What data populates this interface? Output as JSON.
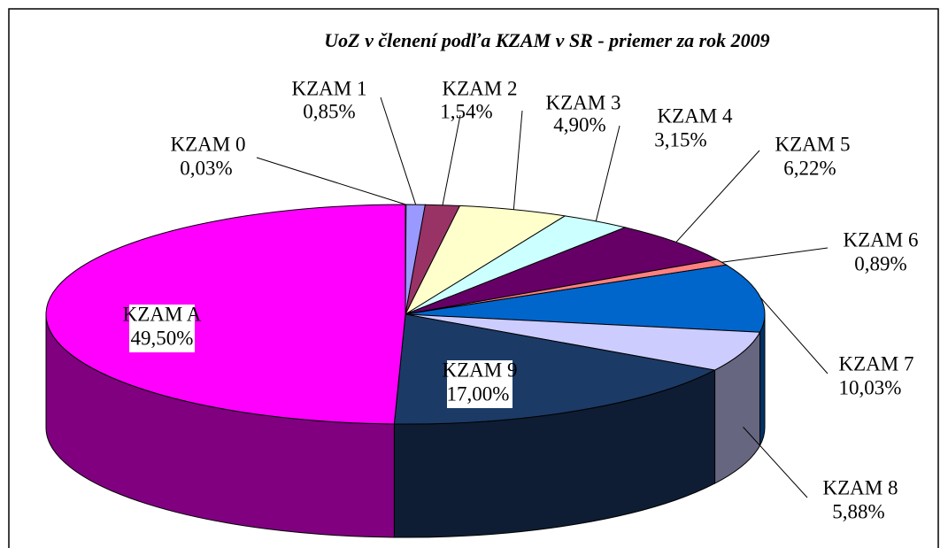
{
  "chart_data": {
    "type": "pie3d",
    "title": "UoZ v členení podľa KZAM v SR - priemer  za rok 2009",
    "categories": [
      "KZAM 0",
      "KZAM 1",
      "KZAM 2",
      "KZAM 3",
      "KZAM 4",
      "KZAM 5",
      "KZAM 6",
      "KZAM 7",
      "KZAM 8",
      "KZAM 9",
      "KZAM A"
    ],
    "values": [
      0.03,
      0.85,
      1.54,
      4.9,
      3.15,
      6.22,
      0.89,
      10.03,
      5.88,
      17.0,
      49.5
    ],
    "value_labels": [
      "0,03%",
      "0,85%",
      "1,54%",
      "4,90%",
      "3,15%",
      "6,22%",
      "0,89%",
      "10,03%",
      "5,88%",
      "17,00%",
      "49,50%"
    ],
    "colors": [
      "#333399",
      "#9999ff",
      "#993366",
      "#ffffcc",
      "#ccffff",
      "#660066",
      "#ff8080",
      "#0066cc",
      "#ccccff",
      "#1c3a66",
      "#ff00ff"
    ]
  }
}
